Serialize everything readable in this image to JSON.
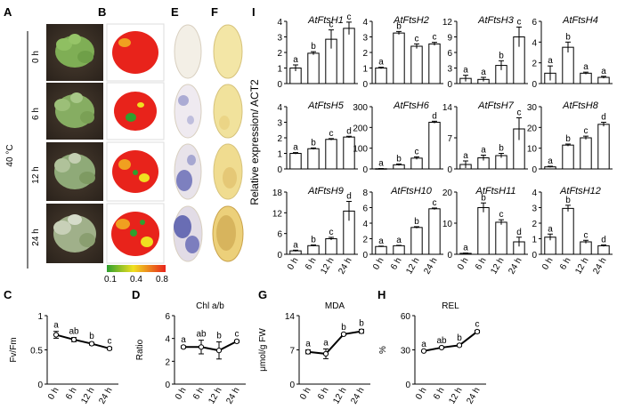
{
  "panel_labels": {
    "A": "A",
    "B": "B",
    "E": "E",
    "F": "F",
    "I": "I",
    "C": "C",
    "D": "D",
    "G": "G",
    "H": "H"
  },
  "treatment": {
    "temperature": "40 °C",
    "times": [
      "0 h",
      "6 h",
      "12 h",
      "24 h"
    ]
  },
  "colorbar": {
    "ticks": [
      "0.1",
      "0.4",
      "0.8"
    ],
    "colors": [
      "#2ea02e",
      "#f0e020",
      "#e8231b"
    ]
  },
  "colors": {
    "plant_leaf": "#7fae55",
    "soil": "#3a2f25",
    "fv_red": "#e8231b",
    "nbt_blue": "#5a5fb0",
    "dab_brown": "#c9a24a",
    "leaf_yellow": "#f3e6a6"
  },
  "i_ylabel": "Relative expression/ ACT2",
  "chart_data": [
    {
      "type": "bar",
      "title": "AtFtsH1",
      "categories": [
        "0 h",
        "6 h",
        "12 h",
        "24 h"
      ],
      "values": [
        1.0,
        1.95,
        2.85,
        3.55
      ],
      "errors": [
        0.2,
        0.1,
        0.6,
        0.4
      ],
      "sig": [
        "a",
        "b",
        "c",
        "c"
      ],
      "ylim": [
        0,
        4
      ],
      "yticks": [
        0,
        1,
        2,
        3,
        4
      ]
    },
    {
      "type": "bar",
      "title": "AtFtsH2",
      "categories": [
        "0 h",
        "6 h",
        "12 h",
        "24 h"
      ],
      "values": [
        1.0,
        3.25,
        2.4,
        2.55
      ],
      "errors": [
        0.05,
        0.1,
        0.15,
        0.1
      ],
      "sig": [
        "a",
        "b",
        "c",
        "c"
      ],
      "ylim": [
        0,
        4
      ],
      "yticks": [
        0,
        1,
        2,
        3,
        4
      ]
    },
    {
      "type": "bar",
      "title": "AtFtsH3",
      "categories": [
        "0 h",
        "6 h",
        "12 h",
        "24 h"
      ],
      "values": [
        1.0,
        0.8,
        3.5,
        9.0
      ],
      "errors": [
        0.6,
        0.4,
        0.9,
        1.9
      ],
      "sig": [
        "a",
        "a",
        "b",
        "c"
      ],
      "ylim": [
        0,
        12
      ],
      "yticks": [
        0,
        3,
        6,
        9,
        12
      ]
    },
    {
      "type": "bar",
      "title": "AtFtsH4",
      "categories": [
        "0 h",
        "6 h",
        "12 h",
        "24 h"
      ],
      "values": [
        1.0,
        3.5,
        1.0,
        0.6
      ],
      "errors": [
        0.7,
        0.5,
        0.1,
        0.1
      ],
      "sig": [
        "a",
        "b",
        "a",
        "a"
      ],
      "ylim": [
        0,
        6
      ],
      "yticks": [
        0,
        2,
        4,
        6
      ]
    },
    {
      "type": "bar",
      "title": "AtFtsH5",
      "categories": [
        "0 h",
        "6 h",
        "12 h",
        "24 h"
      ],
      "values": [
        1.0,
        1.3,
        1.9,
        2.05
      ],
      "errors": [
        0.05,
        0.05,
        0.05,
        0.05
      ],
      "sig": [
        "a",
        "b",
        "c",
        "d"
      ],
      "ylim": [
        0,
        4
      ],
      "yticks": [
        0,
        1,
        2,
        3,
        4
      ]
    },
    {
      "type": "bar",
      "title": "AtFtsH6",
      "categories": [
        "0 h",
        "6 h",
        "12 h",
        "24 h"
      ],
      "values": [
        1.0,
        20,
        52,
        225
      ],
      "errors": [
        1,
        4,
        6,
        5
      ],
      "sig": [
        "a",
        "b",
        "c",
        "d"
      ],
      "ylim": [
        0,
        300
      ],
      "yticks": [
        0,
        100,
        200,
        300
      ]
    },
    {
      "type": "bar",
      "title": "AtFtsH7",
      "categories": [
        "0 h",
        "6 h",
        "12 h",
        "24 h"
      ],
      "values": [
        1.0,
        2.5,
        3.0,
        9.0
      ],
      "errors": [
        0.8,
        0.6,
        0.5,
        2.5
      ],
      "sig": [
        "a",
        "a",
        "b",
        "c"
      ],
      "ylim": [
        0,
        14
      ],
      "yticks": [
        0,
        7,
        14
      ]
    },
    {
      "type": "bar",
      "title": "AtFtsH8",
      "categories": [
        "0 h",
        "6 h",
        "12 h",
        "24 h"
      ],
      "values": [
        1.0,
        11.5,
        15.0,
        21.5
      ],
      "errors": [
        0.3,
        0.5,
        0.8,
        1.0
      ],
      "sig": [
        "a",
        "b",
        "c",
        "d"
      ],
      "ylim": [
        0,
        30
      ],
      "yticks": [
        0,
        10,
        20,
        30
      ]
    },
    {
      "type": "bar",
      "title": "AtFtsH9",
      "categories": [
        "0 h",
        "6 h",
        "12 h",
        "24 h"
      ],
      "values": [
        1.0,
        2.5,
        4.5,
        12.5
      ],
      "errors": [
        0.2,
        0.2,
        0.4,
        2.8
      ],
      "sig": [
        "a",
        "b",
        "c",
        "d"
      ],
      "ylim": [
        0,
        18
      ],
      "yticks": [
        0,
        6,
        12,
        18
      ]
    },
    {
      "type": "bar",
      "title": "AtFtsH10",
      "categories": [
        "0 h",
        "6 h",
        "12 h",
        "24 h"
      ],
      "values": [
        1.0,
        1.1,
        3.45,
        5.85
      ],
      "errors": [
        0.05,
        0.05,
        0.1,
        0.1
      ],
      "sig": [
        "a",
        "a",
        "b",
        "c"
      ],
      "ylim": [
        0,
        8
      ],
      "yticks": [
        0,
        2,
        4,
        6,
        8
      ]
    },
    {
      "type": "bar",
      "title": "AtFtsH11",
      "categories": [
        "0 h",
        "6 h",
        "12 h",
        "24 h"
      ],
      "values": [
        0.3,
        15.0,
        10.3,
        4.0
      ],
      "errors": [
        0.1,
        1.5,
        0.8,
        1.5
      ],
      "sig": [
        "a",
        "b",
        "c",
        "d"
      ],
      "ylim": [
        0,
        20
      ],
      "yticks": [
        0,
        10,
        20
      ]
    },
    {
      "type": "bar",
      "title": "AtFtsH12",
      "categories": [
        "0 h",
        "6 h",
        "12 h",
        "24 h"
      ],
      "values": [
        1.1,
        2.95,
        0.8,
        0.55
      ],
      "errors": [
        0.2,
        0.2,
        0.1,
        0.05
      ],
      "sig": [
        "a",
        "b",
        "c",
        "d"
      ],
      "ylim": [
        0,
        4
      ],
      "yticks": [
        0,
        1,
        2,
        3,
        4
      ]
    },
    {
      "type": "line",
      "panel": "C",
      "ylabel": "Fv/Fm",
      "x": [
        "0 h",
        "6 h",
        "12 h",
        "24 h"
      ],
      "values": [
        0.72,
        0.65,
        0.59,
        0.52
      ],
      "errors": [
        0.05,
        0.03,
        0.02,
        0.02
      ],
      "sig": [
        "a",
        "ab",
        "b",
        "c"
      ],
      "ylim": [
        0,
        1
      ],
      "yticks": [
        0,
        0.5,
        1
      ],
      "ytick_labels": [
        "0",
        "0.5",
        "1"
      ]
    },
    {
      "type": "line",
      "panel": "D",
      "title": "Chl a/b",
      "ylabel": "Ratio",
      "x": [
        "0 h",
        "6 h",
        "12 h",
        "24 h"
      ],
      "values": [
        3.25,
        3.25,
        2.95,
        3.75
      ],
      "errors": [
        0.1,
        0.6,
        0.75,
        0.1
      ],
      "sig": [
        "a",
        "ab",
        "b",
        "c"
      ],
      "ylim": [
        0,
        6
      ],
      "yticks": [
        0,
        2,
        4,
        6
      ]
    },
    {
      "type": "line",
      "panel": "G",
      "title": "MDA",
      "ylabel": "μmol/g FW",
      "x": [
        "0 h",
        "6 h",
        "12 h",
        "24 h"
      ],
      "values": [
        6.6,
        6.2,
        10.2,
        10.8
      ],
      "errors": [
        0.4,
        1.0,
        0.2,
        0.4
      ],
      "sig": [
        "a",
        "a",
        "b",
        "b"
      ],
      "ylim": [
        0,
        14
      ],
      "yticks": [
        0,
        7,
        14
      ]
    },
    {
      "type": "line",
      "panel": "H",
      "title": "REL",
      "ylabel": "%",
      "x": [
        "0 h",
        "6 h",
        "12 h",
        "24 h"
      ],
      "values": [
        29,
        32,
        34,
        46
      ],
      "errors": [
        0.5,
        0.8,
        1.0,
        1.2
      ],
      "sig": [
        "a",
        "ab",
        "b",
        "c"
      ],
      "ylim": [
        0,
        60
      ],
      "yticks": [
        0,
        30,
        60
      ]
    }
  ]
}
